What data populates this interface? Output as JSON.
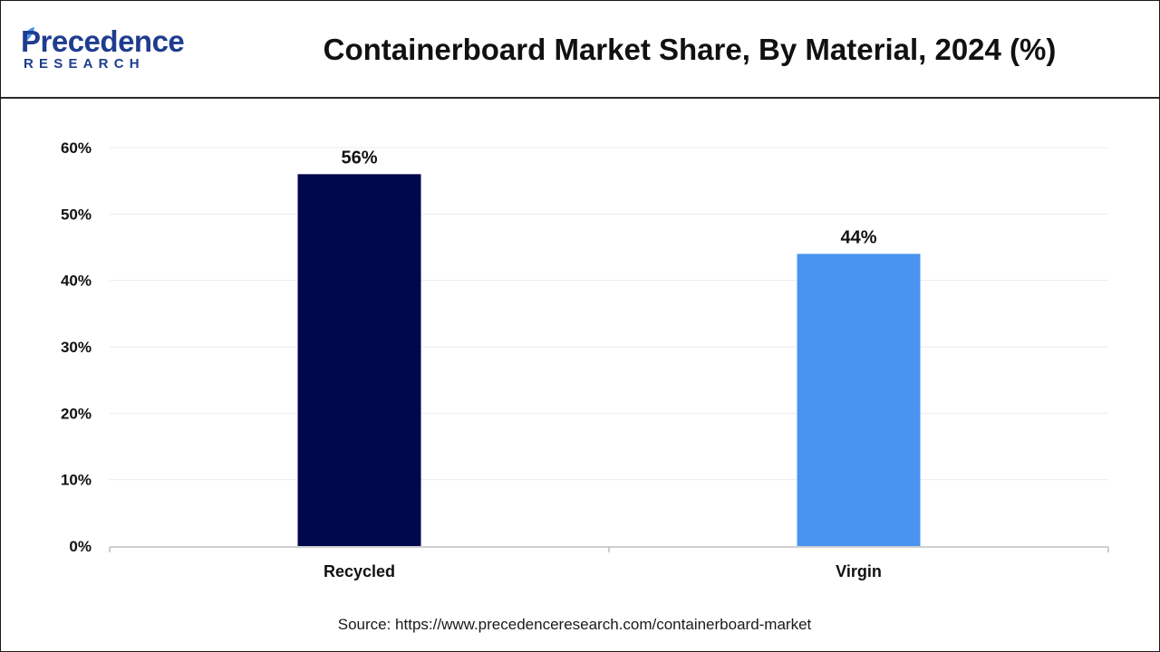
{
  "header": {
    "brand_name": "Precedence",
    "brand_sub": "RESEARCH",
    "title": "Containerboard Market Share, By Material, 2024 (%)"
  },
  "chart_data": {
    "type": "bar",
    "title": "Containerboard Market Share, By Material, 2024 (%)",
    "categories": [
      "Recycled",
      "Virgin"
    ],
    "values": [
      56,
      44
    ],
    "value_labels": [
      "56%",
      "44%"
    ],
    "bar_colors": [
      "#00074d",
      "#4894ee"
    ],
    "xlabel": "",
    "ylabel": "",
    "ylim": [
      0,
      60
    ],
    "yticks": [
      0,
      10,
      20,
      30,
      40,
      50,
      60
    ],
    "ytick_labels": [
      "0%",
      "10%",
      "20%",
      "30%",
      "40%",
      "50%",
      "60%"
    ],
    "grid": true,
    "legend": "none"
  },
  "footer": {
    "source": "Source: https://www.precedenceresearch.com/containerboard-market"
  }
}
